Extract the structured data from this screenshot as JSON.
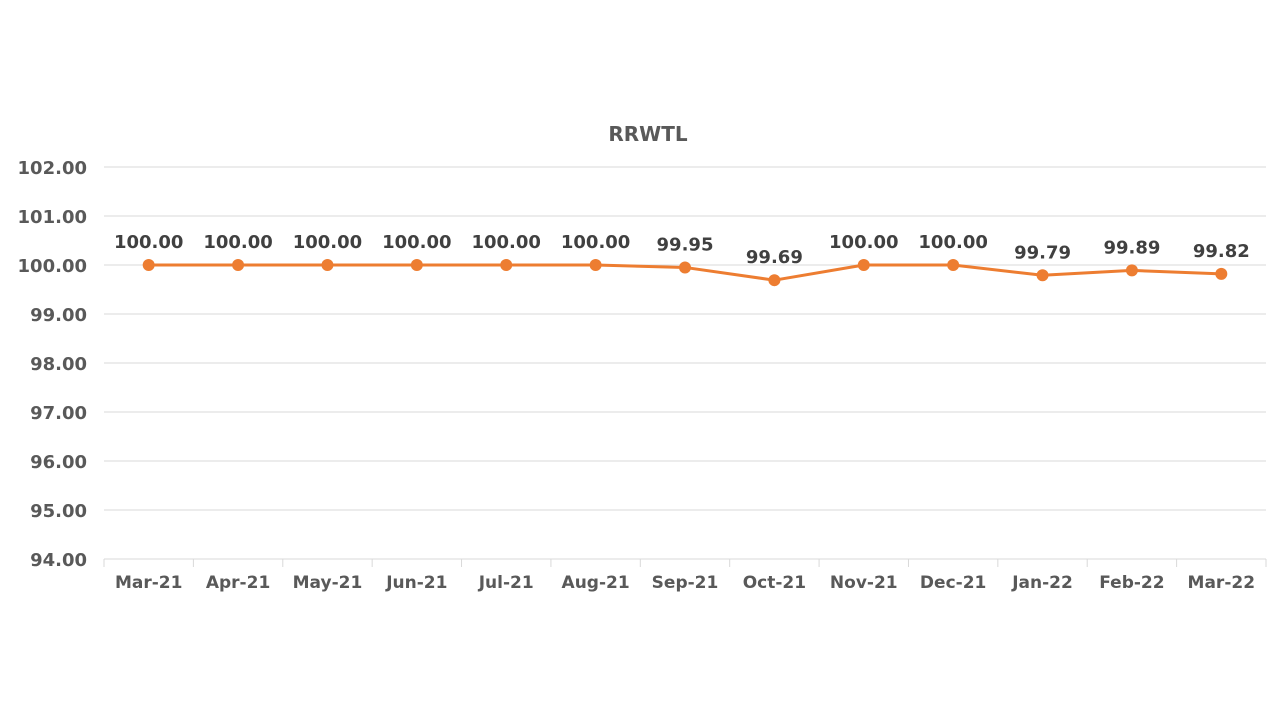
{
  "chart_data": {
    "type": "line",
    "title": "RRWTL",
    "xlabel": "",
    "ylabel": "",
    "categories": [
      "Mar-21",
      "Apr-21",
      "May-21",
      "Jun-21",
      "Jul-21",
      "Aug-21",
      "Sep-21",
      "Oct-21",
      "Nov-21",
      "Dec-21",
      "Jan-22",
      "Feb-22",
      "Mar-22"
    ],
    "series": [
      {
        "values": [
          100.0,
          100.0,
          100.0,
          100.0,
          100.0,
          100.0,
          99.95,
          99.69,
          100.0,
          100.0,
          99.79,
          99.89,
          99.82
        ],
        "labels": [
          "100.00",
          "100.00",
          "100.00",
          "100.00",
          "100.00",
          "100.00",
          "99.95",
          "99.69",
          "100.00",
          "100.00",
          "99.79",
          "99.89",
          "99.82"
        ],
        "color": "#ED7D31"
      }
    ],
    "ylim": [
      94,
      102
    ],
    "yticks": [
      "94.00",
      "95.00",
      "96.00",
      "97.00",
      "98.00",
      "99.00",
      "100.00",
      "101.00",
      "102.00"
    ],
    "grid": true,
    "legend": "none"
  }
}
